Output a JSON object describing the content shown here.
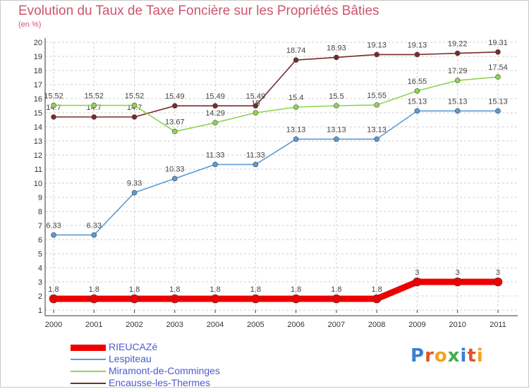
{
  "chart_data": {
    "type": "line",
    "title": "Evolution du Taux de Taxe Foncière sur les Propriétés Bâties",
    "unit_label": "(en %)",
    "categories": [
      "2000",
      "2001",
      "2002",
      "2003",
      "2004",
      "2005",
      "2006",
      "2007",
      "2008",
      "2009",
      "2010",
      "2011"
    ],
    "ylim": [
      1,
      20
    ],
    "yticks": [
      "1",
      "2",
      "3",
      "4",
      "5",
      "6",
      "7",
      "8",
      "9",
      "10",
      "11",
      "12",
      "13",
      "14",
      "15",
      "16",
      "17",
      "18",
      "19",
      "20"
    ],
    "grid": true,
    "series": [
      {
        "name": "RIEUCAZé",
        "color": "#ee0000",
        "values": [
          1.8,
          1.8,
          1.8,
          1.8,
          1.8,
          1.8,
          1.8,
          1.8,
          1.8,
          3,
          3,
          3
        ],
        "labels": [
          "1.8",
          "1.8",
          "1.8",
          "1.8",
          "1.8",
          "1.8",
          "1.8",
          "1.8",
          "1.8",
          "3",
          "3",
          "3"
        ]
      },
      {
        "name": "Lespiteau",
        "color": "#5b9bd5",
        "values": [
          6.33,
          6.33,
          9.33,
          10.33,
          11.33,
          11.33,
          13.13,
          13.13,
          13.13,
          15.13,
          15.13,
          15.13
        ],
        "labels": [
          "6.33",
          "6.33",
          "9.33",
          "10.33",
          "11.33",
          "11.33",
          "13.13",
          "13.13",
          "13.13",
          "15.13",
          "15.13",
          "15.13"
        ]
      },
      {
        "name": "Miramont-de-Comminges",
        "color": "#8fd44f",
        "values": [
          15.52,
          15.52,
          15.52,
          13.67,
          14.29,
          15,
          15.4,
          15.5,
          15.55,
          16.55,
          17.29,
          17.54
        ],
        "labels": [
          "15.52",
          "15.52",
          "15.52",
          "13.67",
          "14.29",
          "15",
          "15.4",
          "15.5",
          "15.55",
          "16.55",
          "17.29",
          "17.54"
        ]
      },
      {
        "name": "Encausse-les-Thermes",
        "color": "#7b2a2a",
        "values": [
          14.7,
          14.7,
          14.7,
          15.49,
          15.49,
          15.49,
          18.74,
          18.93,
          19.13,
          19.13,
          19.22,
          19.31
        ],
        "labels": [
          "14.7",
          "14.7",
          "14.7",
          "15.49",
          "15.49",
          "15.49",
          "18.74",
          "18.93",
          "19.13",
          "19.13",
          "19.22",
          "19.31"
        ]
      }
    ],
    "legend_position": "bottom-left"
  },
  "colors": {
    "title": "#cc5470",
    "legend_text": "#4d5bd0",
    "grid": "#cfcfcf",
    "axis": "#333333"
  },
  "logo": {
    "text": "Proxiti",
    "letter_colors": [
      "#3a7fd0",
      "#e0542a",
      "#f2a21c",
      "#3fb04a",
      "#3a7fd0",
      "#e0542a",
      "#f2a21c"
    ]
  }
}
